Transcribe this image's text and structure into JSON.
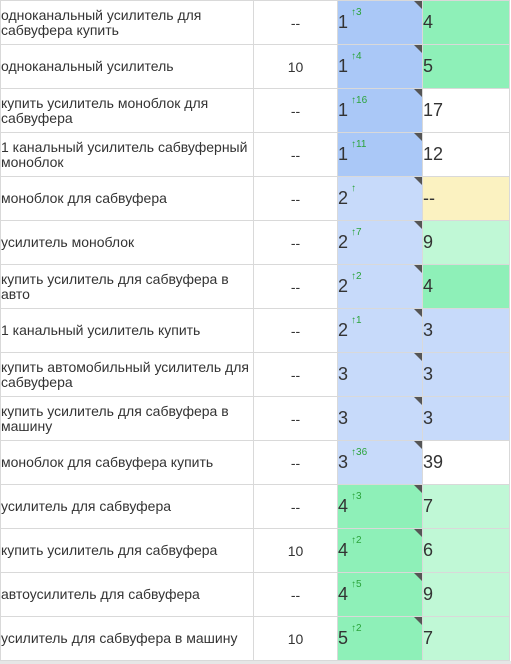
{
  "rows": [
    {
      "keyword": "одноканальный усилитель для сабвуфера купить",
      "freq": "--",
      "pos": "1",
      "delta": "↑3",
      "pos_bg": "#aac8f7",
      "prev": "4",
      "prev_bg": "#8ef0b8"
    },
    {
      "keyword": "одноканальный усилитель",
      "freq": "10",
      "pos": "1",
      "delta": "↑4",
      "pos_bg": "#aac8f7",
      "prev": "5",
      "prev_bg": "#8ef0b8"
    },
    {
      "keyword": "купить усилитель моноблок для сабвуфера",
      "freq": "--",
      "pos": "1",
      "delta": "↑16",
      "pos_bg": "#aac8f7",
      "prev": "17",
      "prev_bg": "#ffffff"
    },
    {
      "keyword": "1 канальный усилитель сабвуферный моноблок",
      "freq": "--",
      "pos": "1",
      "delta": "↑11",
      "pos_bg": "#aac8f7",
      "prev": "12",
      "prev_bg": "#ffffff"
    },
    {
      "keyword": "моноблок для сабвуфера",
      "freq": "--",
      "pos": "2",
      "delta": "↑",
      "pos_bg": "#c7dafa",
      "prev": "--",
      "prev_bg": "#fbf2c1"
    },
    {
      "keyword": "усилитель моноблок",
      "freq": "--",
      "pos": "2",
      "delta": "↑7",
      "pos_bg": "#c7dafa",
      "prev": "9",
      "prev_bg": "#c0f8d6"
    },
    {
      "keyword": "купить усилитель для сабвуфера в авто",
      "freq": "--",
      "pos": "2",
      "delta": "↑2",
      "pos_bg": "#c7dafa",
      "prev": "4",
      "prev_bg": "#8ef0b8"
    },
    {
      "keyword": "1 канальный усилитель купить",
      "freq": "--",
      "pos": "2",
      "delta": "↑1",
      "pos_bg": "#c7dafa",
      "prev": "3",
      "prev_bg": "#c7dafa"
    },
    {
      "keyword": "купить автомобильный усилитель для сабвуфера",
      "freq": "--",
      "pos": "3",
      "delta": "",
      "pos_bg": "#c7dafa",
      "prev": "3",
      "prev_bg": "#c7dafa"
    },
    {
      "keyword": "купить усилитель для сабвуфера в машину",
      "freq": "--",
      "pos": "3",
      "delta": "",
      "pos_bg": "#c7dafa",
      "prev": "3",
      "prev_bg": "#c7dafa"
    },
    {
      "keyword": "моноблок для сабвуфера купить",
      "freq": "--",
      "pos": "3",
      "delta": "↑36",
      "pos_bg": "#c7dafa",
      "prev": "39",
      "prev_bg": "#ffffff"
    },
    {
      "keyword": "усилитель для сабвуфера",
      "freq": "--",
      "pos": "4",
      "delta": "↑3",
      "pos_bg": "#8ef0b8",
      "prev": "7",
      "prev_bg": "#c0f8d6"
    },
    {
      "keyword": "купить усилитель для сабвуфера",
      "freq": "10",
      "pos": "4",
      "delta": "↑2",
      "pos_bg": "#8ef0b8",
      "prev": "6",
      "prev_bg": "#c0f8d6"
    },
    {
      "keyword": "автоусилитель для сабвуфера",
      "freq": "--",
      "pos": "4",
      "delta": "↑5",
      "pos_bg": "#8ef0b8",
      "prev": "9",
      "prev_bg": "#c0f8d6"
    },
    {
      "keyword": "усилитель для сабвуфера в машину",
      "freq": "10",
      "pos": "5",
      "delta": "↑2",
      "pos_bg": "#8ef0b8",
      "prev": "7",
      "prev_bg": "#c0f8d6"
    }
  ]
}
